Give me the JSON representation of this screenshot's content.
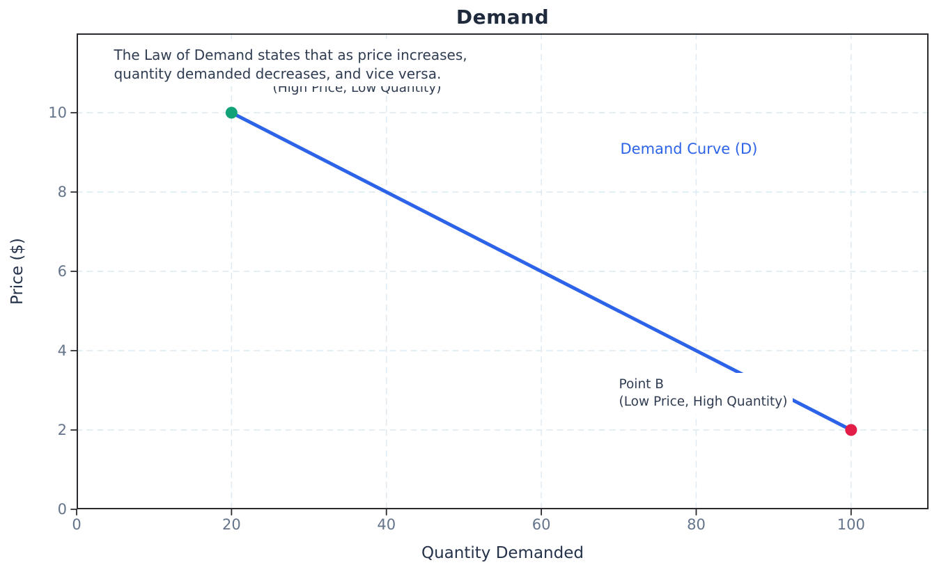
{
  "chart_data": {
    "type": "line",
    "title": "Demand",
    "xlabel": "Quantity Demanded",
    "ylabel": "Price ($)",
    "xlim": [
      0,
      110
    ],
    "ylim": [
      0,
      12
    ],
    "xticks": [
      0,
      20,
      40,
      60,
      80,
      100
    ],
    "yticks": [
      0,
      2,
      4,
      6,
      8,
      10
    ],
    "grid": {
      "on": true,
      "style": "dashed",
      "color": "#dce8f2"
    },
    "colors": {
      "spine": "#2a2a2e",
      "tick_label": "#64748b",
      "text": "#1f2a3c"
    },
    "series": [
      {
        "name": "Demand Curve (D)",
        "x": [
          20,
          100
        ],
        "y": [
          10,
          2
        ],
        "color": "#2c63e8",
        "width": 5
      }
    ],
    "points": [
      {
        "name": "Point A",
        "x": 20,
        "y": 10,
        "color": "#12a277",
        "radius": 8.5
      },
      {
        "name": "Point B",
        "x": 100,
        "y": 2,
        "color": "#e11d48",
        "radius": 8.5
      }
    ],
    "annotations": {
      "point_a": {
        "text": "Point A\n(High Price, Low Quantity)",
        "x": 36.2,
        "y": 11.26,
        "anchor": "top-center",
        "color": "#2f3c51",
        "size": 18.5
      },
      "law": {
        "text": "The Law of Demand states that as price increases,\nquantity demanded decreases, and vice versa.",
        "x": 4.0,
        "y": 11.75,
        "anchor": "top-left",
        "bg": "#ffffff",
        "padding": "4px 9px",
        "color": "#2f3c51",
        "size": 20
      },
      "point_b": {
        "text": "Point B\n(Low Price, High Quantity)",
        "x": 69.3,
        "y": 3.43,
        "anchor": "top-left",
        "bg": "#ffffff",
        "padding": "5px 8px",
        "color": "#2f3c51",
        "size": 18.5
      },
      "curve_label": {
        "text": "Demand Curve (D)",
        "x": 70.2,
        "y": 9.34,
        "anchor": "top-left",
        "color": "#2c63e8",
        "size": 21
      }
    }
  }
}
